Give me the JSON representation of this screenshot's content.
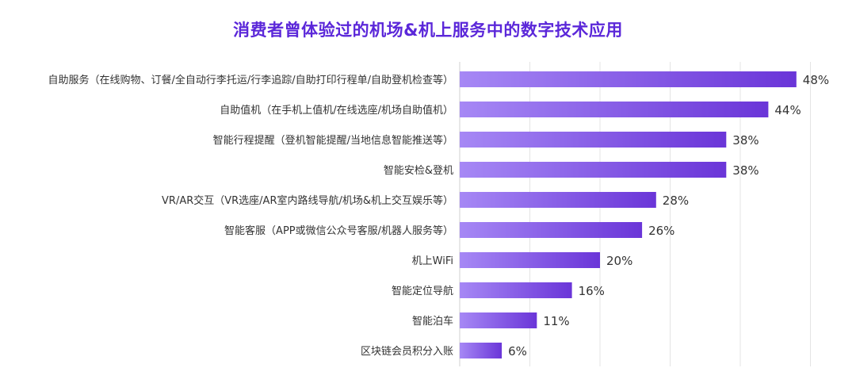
{
  "chart_data": {
    "type": "bar",
    "orientation": "horizontal",
    "title": "消费者曾体验过的机场&机上服务中的数字技术应用",
    "categories": [
      "自助服务（在线购物、订餐/全自动行李托运/行李追踪/自助打印行程单/自助登机检查等）",
      "自助值机（在手机上值机/在线选座/机场自助值机）",
      "智能行程提醒（登机智能提醒/当地信息智能推送等）",
      "智能安检&登机",
      "VR/AR交互（VR选座/AR室内路线导航/机场&机上交互娱乐等）",
      "智能客服（APP或微信公众号客服/机器人服务等）",
      "机上WiFi",
      "智能定位导航",
      "智能泊车",
      "区块链会员积分入账"
    ],
    "values": [
      48,
      44,
      38,
      38,
      28,
      26,
      20,
      16,
      11,
      6
    ],
    "value_labels": [
      "48%",
      "44%",
      "38%",
      "38%",
      "28%",
      "26%",
      "20%",
      "16%",
      "11%",
      "6%"
    ],
    "xlim": [
      0,
      50
    ],
    "grid": true,
    "bar_gradient": [
      "#a688f5",
      "#6a35d8"
    ]
  }
}
